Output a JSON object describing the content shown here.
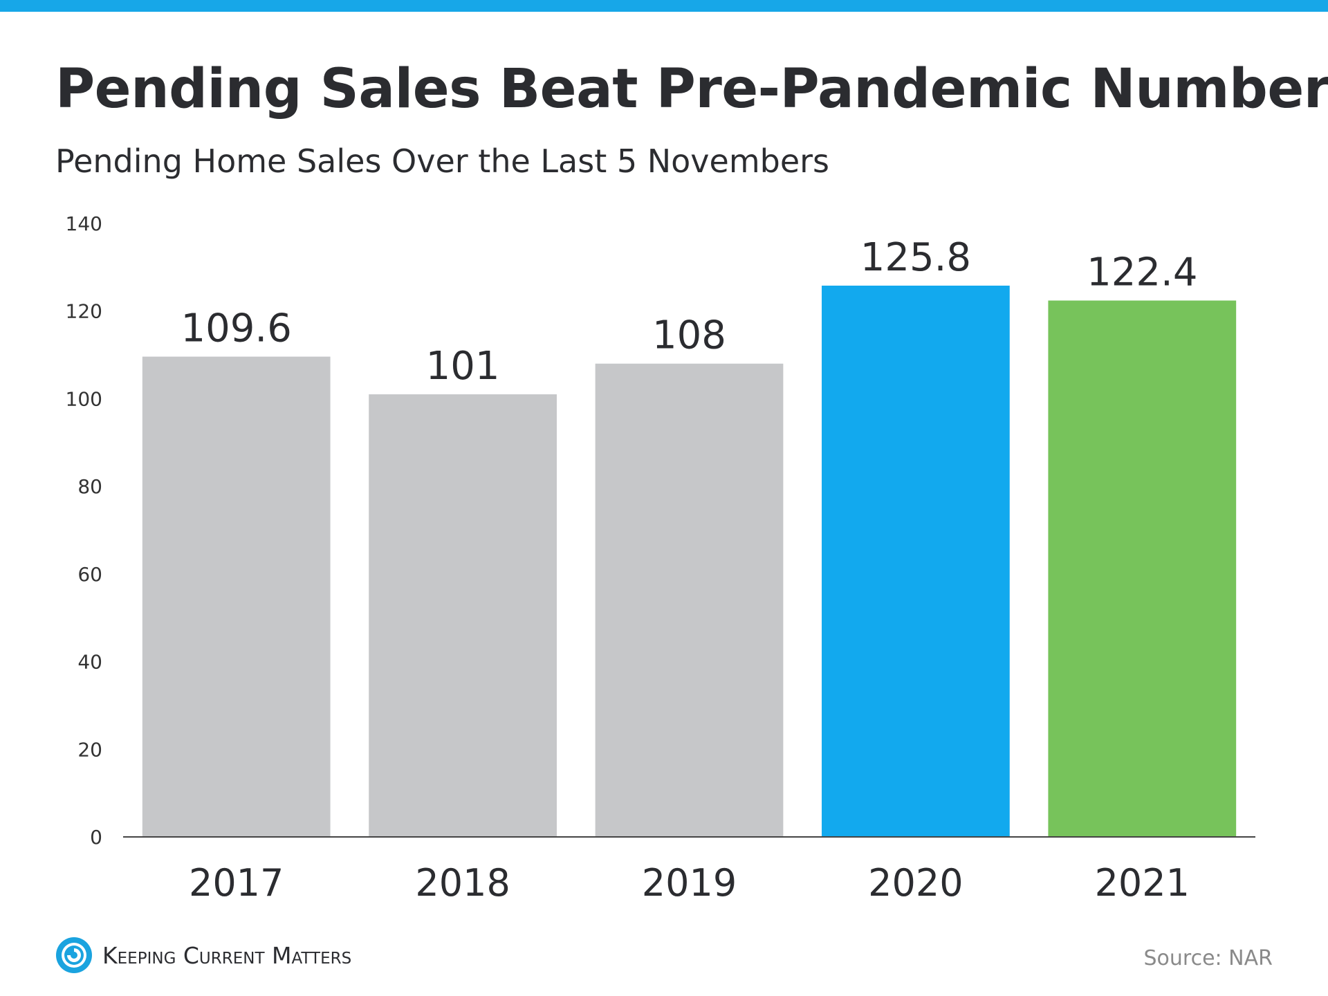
{
  "header": {
    "title": "Pending Sales Beat Pre-Pandemic Numbers",
    "subtitle": "Pending Home Sales Over the Last 5 Novembers"
  },
  "footer": {
    "brand": "Keeping Current Matters",
    "source": "Source: NAR"
  },
  "colors": {
    "accent": "#17a7e8",
    "gray_bar": "#c6c7c9",
    "blue_bar": "#12a9ee",
    "green_bar": "#77c35b"
  },
  "chart_data": {
    "type": "bar",
    "title": "Pending Sales Beat Pre-Pandemic Numbers",
    "subtitle": "Pending Home Sales Over the Last 5 Novembers",
    "categories": [
      "2017",
      "2018",
      "2019",
      "2020",
      "2021"
    ],
    "values": [
      109.6,
      101,
      108,
      125.8,
      122.4
    ],
    "value_labels": [
      "109.6",
      "101",
      "108",
      "125.8",
      "122.4"
    ],
    "bar_colors": [
      "#c6c7c9",
      "#c6c7c9",
      "#c6c7c9",
      "#12a9ee",
      "#77c35b"
    ],
    "ylim": [
      0,
      140
    ],
    "yticks": [
      0,
      20,
      40,
      60,
      80,
      100,
      120,
      140
    ],
    "xlabel": "",
    "ylabel": "",
    "grid": false,
    "legend": "none"
  }
}
